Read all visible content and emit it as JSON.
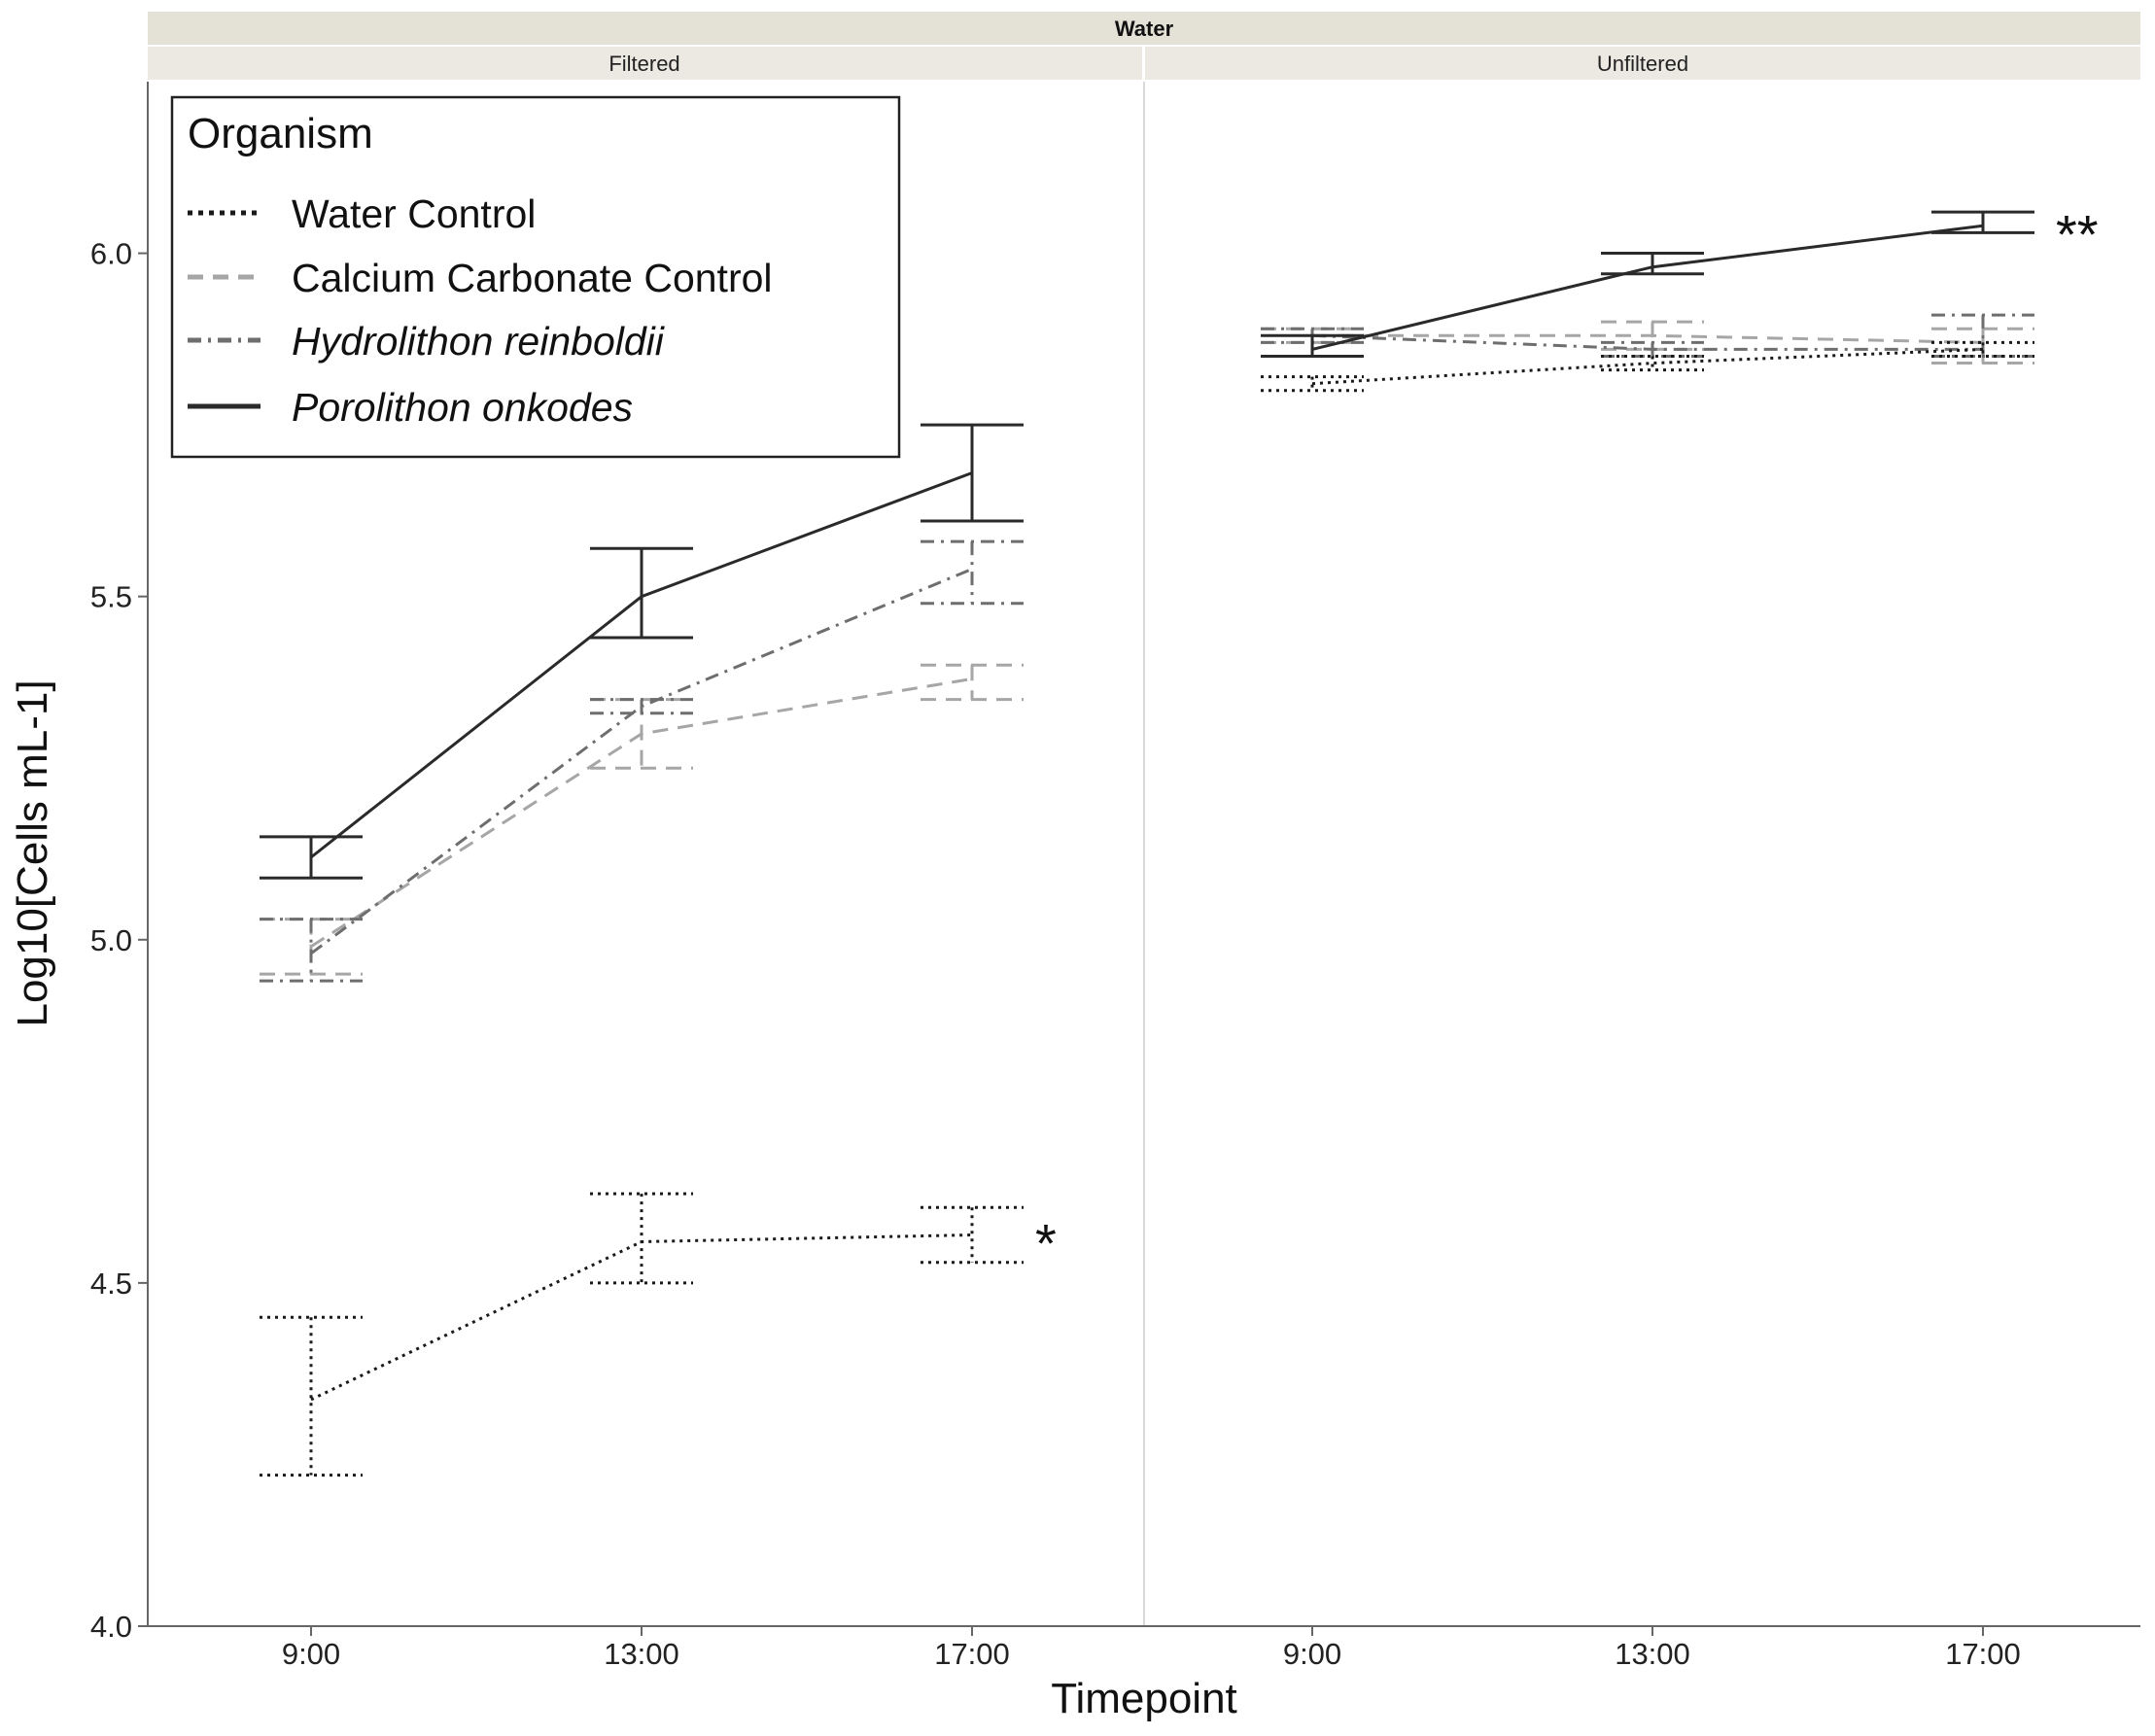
{
  "chart_data": {
    "type": "line",
    "facet_outer_label": "Water",
    "panels": [
      "Filtered",
      "Unfiltered"
    ],
    "categories": [
      "9:00",
      "13:00",
      "17:00"
    ],
    "xlabel": "Timepoint",
    "ylabel": "Log10[Cells mL-1]",
    "ylim": [
      4.0,
      6.25
    ],
    "yticks": [
      "4.0",
      "4.5",
      "5.0",
      "5.5",
      "6.0"
    ],
    "grid": false,
    "legend": {
      "title": "Organism",
      "placement": "top-left",
      "entries": [
        {
          "label": "Water Control",
          "italic": false
        },
        {
          "label": "Calcium Carbonate Control",
          "italic": false
        },
        {
          "label": "Hydrolithon reinboldii",
          "italic": true
        },
        {
          "label": "Porolithon onkodes",
          "italic": true
        }
      ]
    },
    "series": [
      {
        "name": "Water Control",
        "style": "dotted",
        "color": "#1a1a1a",
        "filtered": {
          "mean": [
            4.33,
            4.56,
            4.57
          ],
          "lower": [
            4.22,
            4.5,
            4.53
          ],
          "upper": [
            4.45,
            4.63,
            4.61
          ]
        },
        "unfiltered": {
          "mean": [
            5.81,
            5.84,
            5.86
          ],
          "lower": [
            5.8,
            5.83,
            5.85
          ],
          "upper": [
            5.82,
            5.85,
            5.87
          ]
        }
      },
      {
        "name": "Calcium Carbonate Control",
        "style": "dashed",
        "color": "#a6a6a6",
        "filtered": {
          "mean": [
            4.99,
            5.3,
            5.38
          ],
          "lower": [
            4.95,
            5.25,
            5.35
          ],
          "upper": [
            5.03,
            5.35,
            5.4
          ]
        },
        "unfiltered": {
          "mean": [
            5.88,
            5.88,
            5.87
          ],
          "lower": [
            5.87,
            5.86,
            5.84
          ],
          "upper": [
            5.89,
            5.9,
            5.89
          ]
        }
      },
      {
        "name": "Hydrolithon reinboldii",
        "style": "dashdot",
        "color": "#6e6e6e",
        "filtered": {
          "mean": [
            4.98,
            5.34,
            5.54
          ],
          "lower": [
            4.94,
            5.33,
            5.49
          ],
          "upper": [
            5.03,
            5.35,
            5.58
          ]
        },
        "unfiltered": {
          "mean": [
            5.88,
            5.86,
            5.86
          ],
          "lower": [
            5.87,
            5.85,
            5.85
          ],
          "upper": [
            5.89,
            5.87,
            5.91
          ]
        }
      },
      {
        "name": "Porolithon onkodes",
        "style": "solid",
        "color": "#2a2a2a",
        "filtered": {
          "mean": [
            5.12,
            5.5,
            5.68
          ],
          "lower": [
            5.09,
            5.44,
            5.61
          ],
          "upper": [
            5.15,
            5.57,
            5.75
          ]
        },
        "unfiltered": {
          "mean": [
            5.86,
            5.98,
            6.04
          ],
          "lower": [
            5.85,
            5.97,
            6.03
          ],
          "upper": [
            5.88,
            6.0,
            6.06
          ]
        }
      }
    ],
    "annotations": [
      {
        "text": "*",
        "panel": "Filtered",
        "near": "Water Control at 17:00"
      },
      {
        "text": "**",
        "panel": "Unfiltered",
        "near": "Porolithon onkodes at 17:00"
      }
    ]
  }
}
